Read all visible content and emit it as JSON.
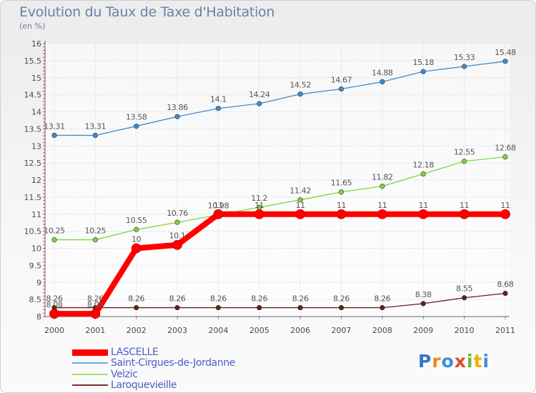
{
  "title": "Evolution du Taux de Taxe d'Habitation",
  "unit_label": "(en %)",
  "brand": {
    "letters": [
      "P",
      "r",
      "o",
      "x",
      "i",
      "t",
      "i"
    ],
    "colors": [
      "#2f77c9",
      "#e8891a",
      "#3a8fd9",
      "#e0492a",
      "#6cb33f",
      "#f2b200",
      "#3a8fd9"
    ]
  },
  "chart_data": {
    "type": "line",
    "x": [
      "2000",
      "2001",
      "2002",
      "2003",
      "2004",
      "2005",
      "2006",
      "2007",
      "2008",
      "2009",
      "2010",
      "2011"
    ],
    "ylim": [
      8,
      16
    ],
    "yticks": [
      "8",
      "8.5",
      "9",
      "9.5",
      "10",
      "10.5",
      "11",
      "11.5",
      "12",
      "12.5",
      "13",
      "13.5",
      "14",
      "14.5",
      "15",
      "15.5",
      "16"
    ],
    "grid": true,
    "series": [
      {
        "name": "LASCELLE",
        "color": "#ff0000",
        "values": [
          8.08,
          8.08,
          10,
          10.1,
          11,
          11,
          11,
          11,
          11,
          11,
          11,
          11
        ],
        "labels": [
          "8.08",
          "8.08",
          "10",
          "10.1",
          "11",
          "11",
          "11",
          "11",
          "11",
          "11",
          "11",
          "11"
        ]
      },
      {
        "name": "Saint-Cirgues-de-Jordanne",
        "color": "#3e8cce",
        "values": [
          13.31,
          13.31,
          13.58,
          13.86,
          14.1,
          14.24,
          14.52,
          14.67,
          14.88,
          15.18,
          15.33,
          15.48
        ],
        "labels": [
          "13.31",
          "13.31",
          "13.58",
          "13.86",
          "14.1",
          "14.24",
          "14.52",
          "14.67",
          "14.88",
          "15.18",
          "15.33",
          "15.48"
        ]
      },
      {
        "name": "Velzic",
        "color": "#7fd43b",
        "values": [
          10.25,
          10.25,
          10.55,
          10.76,
          10.98,
          11.2,
          11.42,
          11.65,
          11.82,
          12.18,
          12.55,
          12.68
        ],
        "labels": [
          "10.25",
          "10.25",
          "10.55",
          "10.76",
          "10.98",
          "11.2",
          "11.42",
          "11.65",
          "11.82",
          "12.18",
          "12.55",
          "12.68"
        ]
      },
      {
        "name": "Laroquevieille",
        "color": "#6b1c1c",
        "values": [
          8.26,
          8.26,
          8.26,
          8.26,
          8.26,
          8.26,
          8.26,
          8.26,
          8.26,
          8.38,
          8.55,
          8.68
        ],
        "labels": [
          "8.26",
          "8.26",
          "8.26",
          "8.26",
          "8.26",
          "8.26",
          "8.26",
          "8.26",
          "8.26",
          "8.38",
          "8.55",
          "8.68"
        ]
      }
    ]
  }
}
